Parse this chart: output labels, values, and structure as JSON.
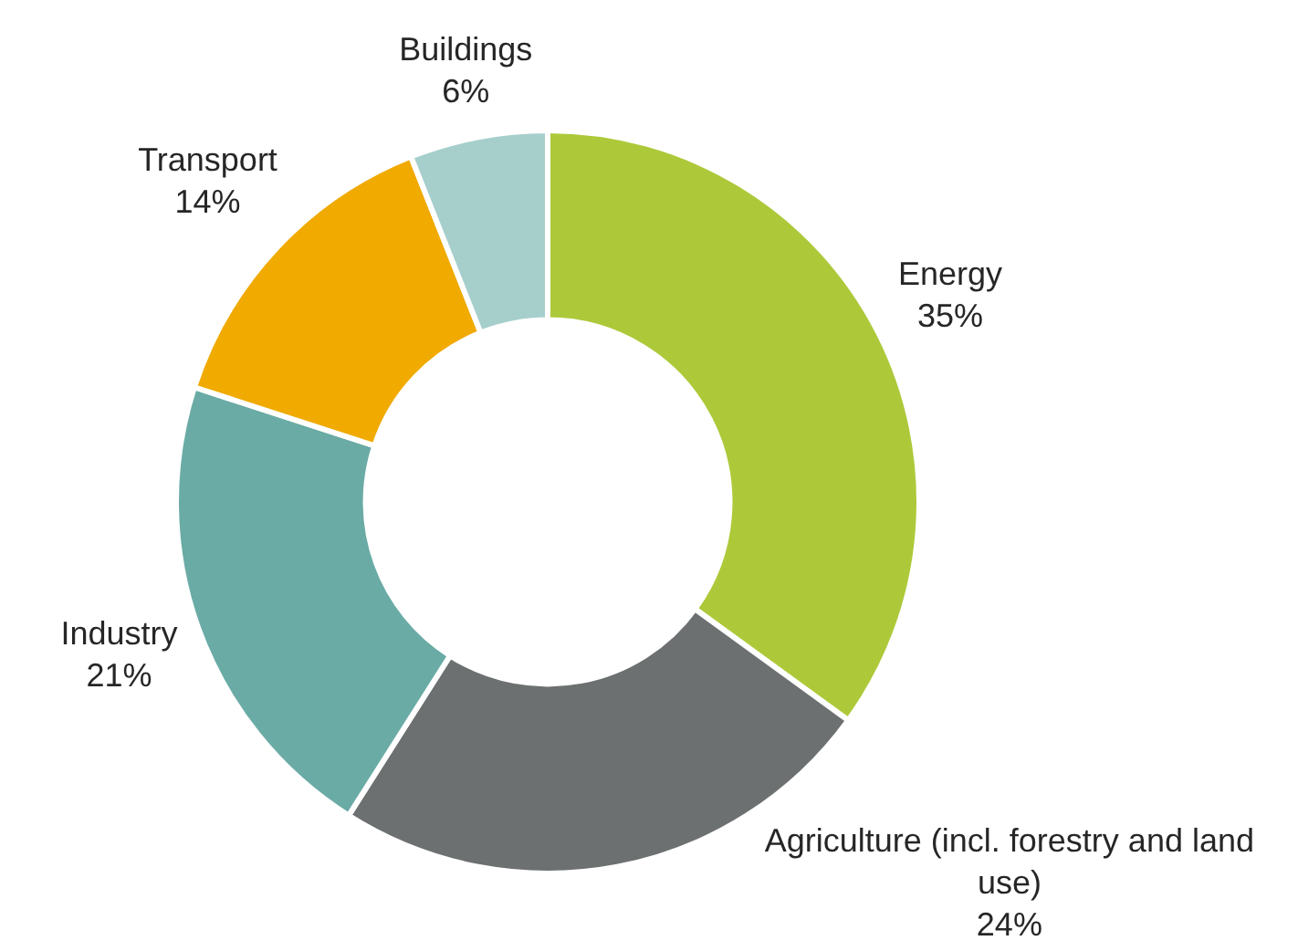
{
  "chart_data": {
    "type": "donut",
    "categories": [
      "Energy",
      "Agriculture (incl. forestry and land use)",
      "Industry",
      "Transport",
      "Buildings"
    ],
    "values": [
      35,
      24,
      21,
      14,
      6
    ],
    "colors": [
      "#adc93a",
      "#6d7070",
      "#6aaba5",
      "#f0aa00",
      "#a6cfcc"
    ],
    "value_labels": [
      "35%",
      "24%",
      "21%",
      "14%",
      "6%"
    ]
  }
}
